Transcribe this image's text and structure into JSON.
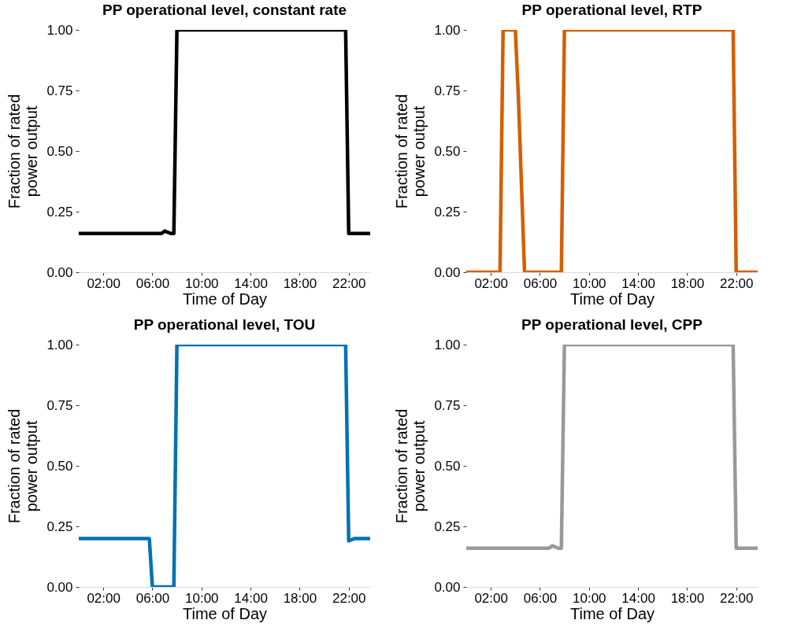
{
  "chart_data": [
    {
      "type": "line",
      "title": "PP operational level, constant rate",
      "xlabel": "Time of Day",
      "ylabel": "Fraction of rated power output",
      "x": [
        0,
        0.5,
        6.75,
        7.0,
        7.5,
        7.75,
        8.0,
        21.75,
        22.0,
        22.5,
        23.75
      ],
      "series": [
        {
          "color": "#000000",
          "values": [
            0.16,
            0.16,
            0.16,
            0.17,
            0.16,
            0.16,
            1,
            1,
            0.16,
            0.16,
            0.16
          ]
        }
      ],
      "xlim": [
        0,
        23.75
      ],
      "xticks": [
        {
          "value": 2,
          "label": "02:00"
        },
        {
          "value": 6,
          "label": "06:00"
        },
        {
          "value": 10,
          "label": "10:00"
        },
        {
          "value": 14,
          "label": "14:00"
        },
        {
          "value": 18,
          "label": "18:00"
        },
        {
          "value": 22,
          "label": "22:00"
        }
      ],
      "ylim": [
        0,
        1
      ],
      "yticks": [
        {
          "value": 0,
          "label": "0.00"
        },
        {
          "value": 0.25,
          "label": "0.25"
        },
        {
          "value": 0.5,
          "label": "0.50"
        },
        {
          "value": 0.75,
          "label": "0.75"
        },
        {
          "value": 1,
          "label": "1.00"
        }
      ]
    },
    {
      "type": "line",
      "title": "PP operational level, RTP",
      "xlabel": "Time of Day",
      "ylabel": "Fraction of rated power output",
      "x": [
        0,
        2.75,
        3.0,
        4.0,
        4.25,
        4.75,
        7.75,
        8.0,
        21.75,
        22.0,
        23.75
      ],
      "series": [
        {
          "color": "#d55e00",
          "values": [
            0,
            0,
            1,
            1,
            0.72,
            0,
            0,
            1,
            1,
            0,
            0
          ]
        }
      ],
      "xlim": [
        0,
        23.75
      ],
      "xticks": [
        {
          "value": 2,
          "label": "02:00"
        },
        {
          "value": 6,
          "label": "06:00"
        },
        {
          "value": 10,
          "label": "10:00"
        },
        {
          "value": 14,
          "label": "14:00"
        },
        {
          "value": 18,
          "label": "18:00"
        },
        {
          "value": 22,
          "label": "22:00"
        }
      ],
      "ylim": [
        0,
        1
      ],
      "yticks": [
        {
          "value": 0,
          "label": "0.00"
        },
        {
          "value": 0.25,
          "label": "0.25"
        },
        {
          "value": 0.5,
          "label": "0.50"
        },
        {
          "value": 0.75,
          "label": "0.75"
        },
        {
          "value": 1,
          "label": "1.00"
        }
      ]
    },
    {
      "type": "line",
      "title": "PP operational level, TOU",
      "xlabel": "Time of Day",
      "ylabel": "Fraction of rated power output",
      "x": [
        0,
        5.75,
        6.0,
        7.75,
        8.0,
        21.75,
        22.0,
        22.5,
        23.75
      ],
      "series": [
        {
          "color": "#0072b2",
          "values": [
            0.2,
            0.2,
            0,
            0,
            1,
            1,
            0.19,
            0.2,
            0.2
          ]
        }
      ],
      "xlim": [
        0,
        23.75
      ],
      "xticks": [
        {
          "value": 2,
          "label": "02:00"
        },
        {
          "value": 6,
          "label": "06:00"
        },
        {
          "value": 10,
          "label": "10:00"
        },
        {
          "value": 14,
          "label": "14:00"
        },
        {
          "value": 18,
          "label": "18:00"
        },
        {
          "value": 22,
          "label": "22:00"
        }
      ],
      "ylim": [
        0,
        1
      ],
      "yticks": [
        {
          "value": 0,
          "label": "0.00"
        },
        {
          "value": 0.25,
          "label": "0.25"
        },
        {
          "value": 0.5,
          "label": "0.50"
        },
        {
          "value": 0.75,
          "label": "0.75"
        },
        {
          "value": 1,
          "label": "1.00"
        }
      ]
    },
    {
      "type": "line",
      "title": "PP operational level, CPP",
      "xlabel": "Time of Day",
      "ylabel": "Fraction of rated power output",
      "x": [
        0,
        0.5,
        6.75,
        7.0,
        7.5,
        7.75,
        8.0,
        21.75,
        22.0,
        22.5,
        23.75
      ],
      "series": [
        {
          "color": "#999999",
          "values": [
            0.16,
            0.16,
            0.16,
            0.17,
            0.16,
            0.16,
            1,
            1,
            0.16,
            0.16,
            0.16
          ]
        }
      ],
      "xlim": [
        0,
        23.75
      ],
      "xticks": [
        {
          "value": 2,
          "label": "02:00"
        },
        {
          "value": 6,
          "label": "06:00"
        },
        {
          "value": 10,
          "label": "10:00"
        },
        {
          "value": 14,
          "label": "14:00"
        },
        {
          "value": 18,
          "label": "18:00"
        },
        {
          "value": 22,
          "label": "22:00"
        }
      ],
      "ylim": [
        0,
        1
      ],
      "yticks": [
        {
          "value": 0,
          "label": "0.00"
        },
        {
          "value": 0.25,
          "label": "0.25"
        },
        {
          "value": 0.5,
          "label": "0.50"
        },
        {
          "value": 0.75,
          "label": "0.75"
        },
        {
          "value": 1,
          "label": "1.00"
        }
      ]
    }
  ]
}
